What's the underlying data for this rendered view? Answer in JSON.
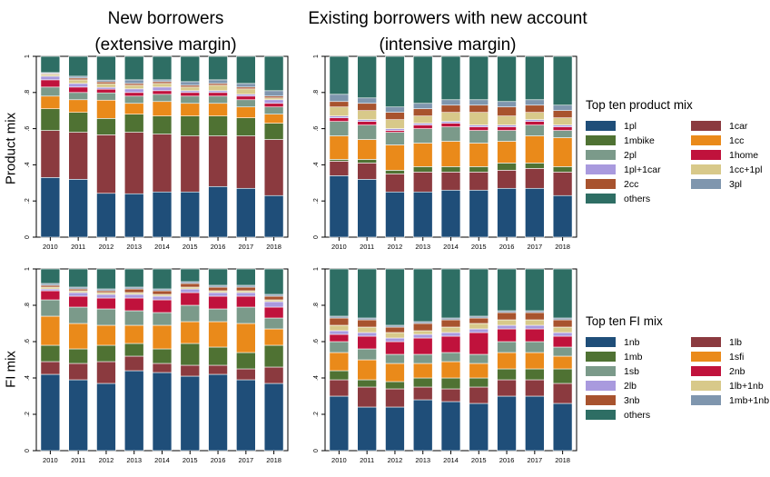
{
  "column_titles": [
    {
      "line1": "New borrowers",
      "line2": "(extensive margin)"
    },
    {
      "line1": "Existing borrowers with new account",
      "line2": "(intensive margin)"
    }
  ],
  "row_labels": [
    "Product mix",
    "FI mix"
  ],
  "legends": [
    {
      "title": "Top ten product mix",
      "items": [
        {
          "label": "1pl",
          "color": "#1f4e79"
        },
        {
          "label": "1car",
          "color": "#8b3a3f"
        },
        {
          "label": "1mbike",
          "color": "#4f7233"
        },
        {
          "label": "1cc",
          "color": "#ea8a1a"
        },
        {
          "label": "2pl",
          "color": "#7b9a8a"
        },
        {
          "label": "1home",
          "color": "#c0123c"
        },
        {
          "label": "1pl+1car",
          "color": "#a99ade"
        },
        {
          "label": "1cc+1pl",
          "color": "#d8c98a"
        },
        {
          "label": "2cc",
          "color": "#a8532e"
        },
        {
          "label": "3pl",
          "color": "#7f96ae"
        },
        {
          "label": "others",
          "color": "#2e6e64"
        }
      ]
    },
    {
      "title": "Top ten FI mix",
      "items": [
        {
          "label": "1nb",
          "color": "#1f4e79"
        },
        {
          "label": "1lb",
          "color": "#8b3a3f"
        },
        {
          "label": "1mb",
          "color": "#4f7233"
        },
        {
          "label": "1sfi",
          "color": "#ea8a1a"
        },
        {
          "label": "1sb",
          "color": "#7b9a8a"
        },
        {
          "label": "2nb",
          "color": "#c0123c"
        },
        {
          "label": "2lb",
          "color": "#a99ade"
        },
        {
          "label": "1lb+1nb",
          "color": "#d8c98a"
        },
        {
          "label": "3nb",
          "color": "#a8532e"
        },
        {
          "label": "1mb+1nb",
          "color": "#7f96ae"
        },
        {
          "label": "others",
          "color": "#2e6e64"
        }
      ]
    }
  ],
  "chart_data": [
    {
      "type": "bar",
      "stacked": true,
      "panel": "product-new",
      "categories": [
        "2010",
        "2011",
        "2012",
        "2013",
        "2014",
        "2015",
        "2016",
        "2017",
        "2018"
      ],
      "ylim": [
        0,
        1
      ],
      "yticks": [
        "0",
        ".2",
        ".4",
        ".6",
        ".8",
        "1"
      ],
      "series": [
        {
          "name": "1pl",
          "values": [
            0.33,
            0.32,
            0.24,
            0.24,
            0.25,
            0.25,
            0.28,
            0.27,
            0.23
          ]
        },
        {
          "name": "1car",
          "values": [
            0.26,
            0.26,
            0.32,
            0.34,
            0.32,
            0.31,
            0.28,
            0.29,
            0.31
          ]
        },
        {
          "name": "1mbike",
          "values": [
            0.12,
            0.11,
            0.09,
            0.1,
            0.1,
            0.11,
            0.11,
            0.1,
            0.09
          ]
        },
        {
          "name": "1cc",
          "values": [
            0.07,
            0.07,
            0.1,
            0.06,
            0.08,
            0.07,
            0.07,
            0.06,
            0.05
          ]
        },
        {
          "name": "2pl",
          "values": [
            0.05,
            0.04,
            0.04,
            0.04,
            0.04,
            0.04,
            0.04,
            0.04,
            0.04
          ]
        },
        {
          "name": "1home",
          "values": [
            0.04,
            0.03,
            0.02,
            0.02,
            0.02,
            0.02,
            0.02,
            0.02,
            0.02
          ]
        },
        {
          "name": "1pl+1car",
          "values": [
            0.02,
            0.02,
            0.01,
            0.02,
            0.02,
            0.01,
            0.01,
            0.01,
            0.02
          ]
        },
        {
          "name": "1cc+1pl",
          "values": [
            0.01,
            0.02,
            0.02,
            0.02,
            0.02,
            0.02,
            0.03,
            0.03,
            0.01
          ]
        },
        {
          "name": "2cc",
          "values": [
            0.005,
            0.01,
            0.01,
            0.01,
            0.01,
            0.01,
            0.01,
            0.01,
            0.01
          ]
        },
        {
          "name": "3pl",
          "values": [
            0.005,
            0.01,
            0.01,
            0.02,
            0.01,
            0.02,
            0.02,
            0.02,
            0.03
          ]
        },
        {
          "name": "others",
          "values": [
            0.09,
            0.11,
            0.13,
            0.13,
            0.13,
            0.14,
            0.13,
            0.15,
            0.19
          ]
        }
      ]
    },
    {
      "type": "bar",
      "stacked": true,
      "panel": "product-existing",
      "categories": [
        "2010",
        "2011",
        "2012",
        "2013",
        "2014",
        "2015",
        "2016",
        "2017",
        "2018"
      ],
      "ylim": [
        0,
        1
      ],
      "yticks": [
        "0",
        ".2",
        ".4",
        ".6",
        ".8",
        "1"
      ],
      "series": [
        {
          "name": "1pl",
          "values": [
            0.34,
            0.32,
            0.25,
            0.25,
            0.26,
            0.26,
            0.27,
            0.27,
            0.23
          ]
        },
        {
          "name": "1car",
          "values": [
            0.08,
            0.09,
            0.1,
            0.11,
            0.1,
            0.1,
            0.1,
            0.11,
            0.13
          ]
        },
        {
          "name": "1mbike",
          "values": [
            0.01,
            0.02,
            0.02,
            0.03,
            0.03,
            0.03,
            0.04,
            0.03,
            0.03
          ]
        },
        {
          "name": "1cc",
          "values": [
            0.13,
            0.11,
            0.14,
            0.13,
            0.14,
            0.13,
            0.12,
            0.15,
            0.16
          ]
        },
        {
          "name": "2pl",
          "values": [
            0.08,
            0.08,
            0.07,
            0.08,
            0.08,
            0.07,
            0.06,
            0.06,
            0.04
          ]
        },
        {
          "name": "1home",
          "values": [
            0.02,
            0.02,
            0.01,
            0.02,
            0.02,
            0.02,
            0.02,
            0.02,
            0.02
          ]
        },
        {
          "name": "1pl+1car",
          "values": [
            0.01,
            0.01,
            0.01,
            0.01,
            0.01,
            0.01,
            0.01,
            0.01,
            0.01
          ]
        },
        {
          "name": "1cc+1pl",
          "values": [
            0.05,
            0.05,
            0.05,
            0.04,
            0.05,
            0.07,
            0.05,
            0.04,
            0.04
          ]
        },
        {
          "name": "2cc",
          "values": [
            0.03,
            0.04,
            0.04,
            0.04,
            0.04,
            0.04,
            0.05,
            0.04,
            0.04
          ]
        },
        {
          "name": "3pl",
          "values": [
            0.04,
            0.03,
            0.03,
            0.03,
            0.03,
            0.03,
            0.03,
            0.03,
            0.03
          ]
        },
        {
          "name": "others",
          "values": [
            0.21,
            0.23,
            0.28,
            0.26,
            0.24,
            0.24,
            0.25,
            0.24,
            0.27
          ]
        }
      ]
    },
    {
      "type": "bar",
      "stacked": true,
      "panel": "fi-new",
      "categories": [
        "2010",
        "2011",
        "2012",
        "2013",
        "2014",
        "2015",
        "2016",
        "2017",
        "2018"
      ],
      "ylim": [
        0,
        1
      ],
      "yticks": [
        "0",
        ".2",
        ".4",
        ".6",
        ".8",
        "1"
      ],
      "series": [
        {
          "name": "1nb",
          "values": [
            0.42,
            0.39,
            0.37,
            0.44,
            0.43,
            0.41,
            0.42,
            0.39,
            0.37
          ]
        },
        {
          "name": "1lb",
          "values": [
            0.07,
            0.09,
            0.12,
            0.08,
            0.05,
            0.06,
            0.05,
            0.06,
            0.09
          ]
        },
        {
          "name": "1mb",
          "values": [
            0.09,
            0.08,
            0.09,
            0.07,
            0.08,
            0.12,
            0.1,
            0.09,
            0.12
          ]
        },
        {
          "name": "1sfi",
          "values": [
            0.16,
            0.14,
            0.11,
            0.1,
            0.13,
            0.12,
            0.14,
            0.16,
            0.09
          ]
        },
        {
          "name": "1sb",
          "values": [
            0.09,
            0.09,
            0.09,
            0.08,
            0.07,
            0.09,
            0.07,
            0.09,
            0.06
          ]
        },
        {
          "name": "2nb",
          "values": [
            0.05,
            0.06,
            0.06,
            0.07,
            0.07,
            0.07,
            0.07,
            0.06,
            0.06
          ]
        },
        {
          "name": "2lb",
          "values": [
            0.01,
            0.02,
            0.02,
            0.02,
            0.02,
            0.02,
            0.02,
            0.02,
            0.03
          ]
        },
        {
          "name": "1lb+1nb",
          "values": [
            0.01,
            0.01,
            0.01,
            0.01,
            0.01,
            0.01,
            0.01,
            0.01,
            0.01
          ]
        },
        {
          "name": "3nb",
          "values": [
            0.01,
            0.01,
            0.01,
            0.02,
            0.02,
            0.02,
            0.02,
            0.02,
            0.02
          ]
        },
        {
          "name": "1mb+1nb",
          "values": [
            0.01,
            0.01,
            0.01,
            0.01,
            0.01,
            0.01,
            0.01,
            0.01,
            0.01
          ]
        },
        {
          "name": "others",
          "values": [
            0.08,
            0.1,
            0.11,
            0.1,
            0.11,
            0.07,
            0.09,
            0.09,
            0.14
          ]
        }
      ]
    },
    {
      "type": "bar",
      "stacked": true,
      "panel": "fi-existing",
      "categories": [
        "2010",
        "2011",
        "2012",
        "2013",
        "2014",
        "2015",
        "2016",
        "2017",
        "2018"
      ],
      "ylim": [
        0,
        1
      ],
      "yticks": [
        "0",
        ".2",
        ".4",
        ".6",
        ".8",
        "1"
      ],
      "series": [
        {
          "name": "1nb",
          "values": [
            0.3,
            0.24,
            0.24,
            0.28,
            0.27,
            0.26,
            0.3,
            0.3,
            0.26
          ]
        },
        {
          "name": "1lb",
          "values": [
            0.09,
            0.11,
            0.1,
            0.07,
            0.07,
            0.09,
            0.09,
            0.09,
            0.11
          ]
        },
        {
          "name": "1mb",
          "values": [
            0.05,
            0.04,
            0.04,
            0.05,
            0.06,
            0.05,
            0.06,
            0.06,
            0.08
          ]
        },
        {
          "name": "1sfi",
          "values": [
            0.1,
            0.11,
            0.1,
            0.08,
            0.09,
            0.08,
            0.09,
            0.09,
            0.07
          ]
        },
        {
          "name": "1sb",
          "values": [
            0.06,
            0.06,
            0.05,
            0.05,
            0.05,
            0.05,
            0.06,
            0.06,
            0.05
          ]
        },
        {
          "name": "2nb",
          "values": [
            0.04,
            0.07,
            0.07,
            0.09,
            0.09,
            0.12,
            0.07,
            0.07,
            0.06
          ]
        },
        {
          "name": "2lb",
          "values": [
            0.02,
            0.02,
            0.02,
            0.02,
            0.02,
            0.02,
            0.02,
            0.02,
            0.02
          ]
        },
        {
          "name": "1lb+1nb",
          "values": [
            0.03,
            0.03,
            0.03,
            0.02,
            0.03,
            0.03,
            0.03,
            0.03,
            0.03
          ]
        },
        {
          "name": "3nb",
          "values": [
            0.04,
            0.04,
            0.03,
            0.04,
            0.04,
            0.03,
            0.04,
            0.04,
            0.04
          ]
        },
        {
          "name": "1mb+1nb",
          "values": [
            0.01,
            0.01,
            0.01,
            0.01,
            0.01,
            0.01,
            0.01,
            0.01,
            0.01
          ]
        },
        {
          "name": "others",
          "values": [
            0.26,
            0.27,
            0.31,
            0.29,
            0.27,
            0.26,
            0.23,
            0.23,
            0.27
          ]
        }
      ]
    }
  ]
}
